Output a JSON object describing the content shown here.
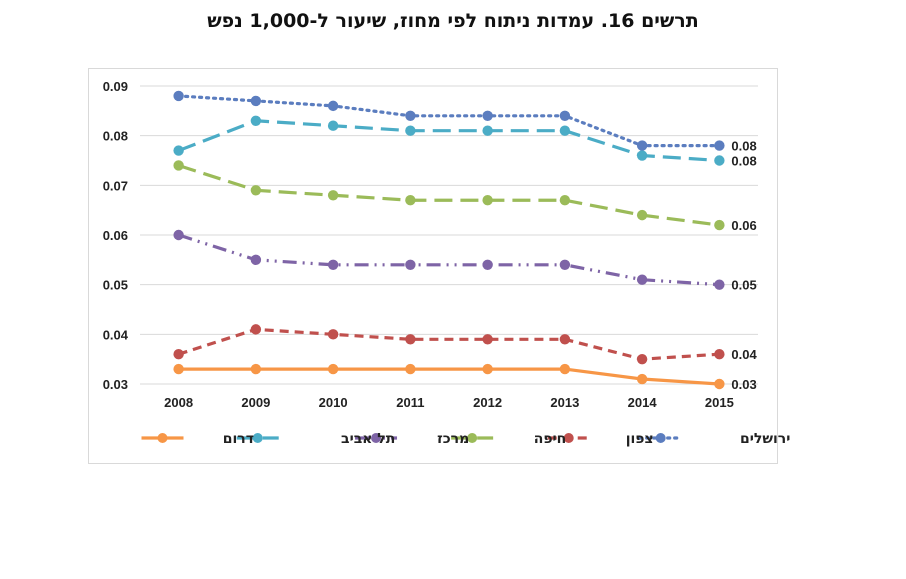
{
  "title": "תרשים 16. עמדות ניתוח לפי מחוז, שיעור ל-1,000 נפש",
  "chart_data": {
    "type": "line",
    "title": "תרשים 16. עמדות ניתוח לפי מחוז, שיעור ל-1,000 נפש",
    "xlabel": "",
    "ylabel": "",
    "categories": [
      "2008",
      "2009",
      "2010",
      "2011",
      "2012",
      "2013",
      "2014",
      "2015"
    ],
    "ylim": [
      0.03,
      0.09
    ],
    "yticks": [
      "0.09",
      "0.08",
      "0.07",
      "0.06",
      "0.05",
      "0.04",
      "0.03"
    ],
    "yticks_values": [
      0.09,
      0.08,
      0.07,
      0.06,
      0.05,
      0.04,
      0.03
    ],
    "grid": true,
    "legend_position": "bottom",
    "series": [
      {
        "name": "ירושלים",
        "color": "#5B7DBF",
        "dash": "dotted",
        "values": [
          0.088,
          0.087,
          0.086,
          0.084,
          0.084,
          0.084,
          0.078,
          0.078
        ],
        "end_label": "0.08"
      },
      {
        "name": "צפון",
        "color": "#C0504D",
        "dash": "dashed",
        "values": [
          0.036,
          0.041,
          0.04,
          0.039,
          0.039,
          0.039,
          0.035,
          0.036
        ],
        "end_label": "0.04"
      },
      {
        "name": "חיפה",
        "color": "#9BBB59",
        "dash": "longdash",
        "values": [
          0.074,
          0.069,
          0.068,
          0.067,
          0.067,
          0.067,
          0.064,
          0.062
        ],
        "end_label": "0.06"
      },
      {
        "name": "מרכז",
        "color": "#7E64A6",
        "dash": "dashdot",
        "values": [
          0.06,
          0.055,
          0.054,
          0.054,
          0.054,
          0.054,
          0.051,
          0.05
        ],
        "end_label": "0.05"
      },
      {
        "name": "תל אביב",
        "color": "#4BACC6",
        "dash": "longdash",
        "values": [
          0.077,
          0.083,
          0.082,
          0.081,
          0.081,
          0.081,
          0.076,
          0.075
        ],
        "end_label": "0.08"
      },
      {
        "name": "דרום",
        "color": "#F79646",
        "dash": "solid",
        "values": [
          0.033,
          0.033,
          0.033,
          0.033,
          0.033,
          0.033,
          0.031,
          0.03
        ],
        "end_label": "0.03"
      }
    ]
  }
}
